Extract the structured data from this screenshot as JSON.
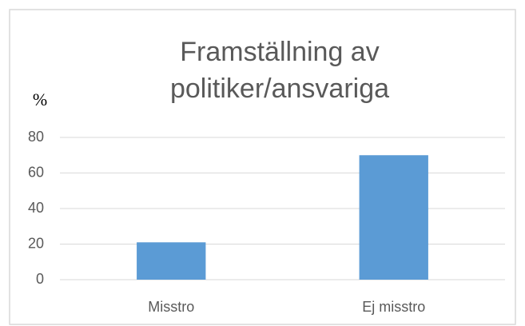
{
  "chart_data": {
    "type": "bar",
    "title": "Framställning av politiker/ansvariga",
    "y_label": "%",
    "categories": [
      "Misstro",
      "Ej misstro"
    ],
    "values": [
      21,
      70
    ],
    "color": "#5b9bd5",
    "ylim": [
      0,
      80
    ],
    "yticks": [
      0,
      20,
      40,
      60,
      80
    ],
    "grid": true
  }
}
